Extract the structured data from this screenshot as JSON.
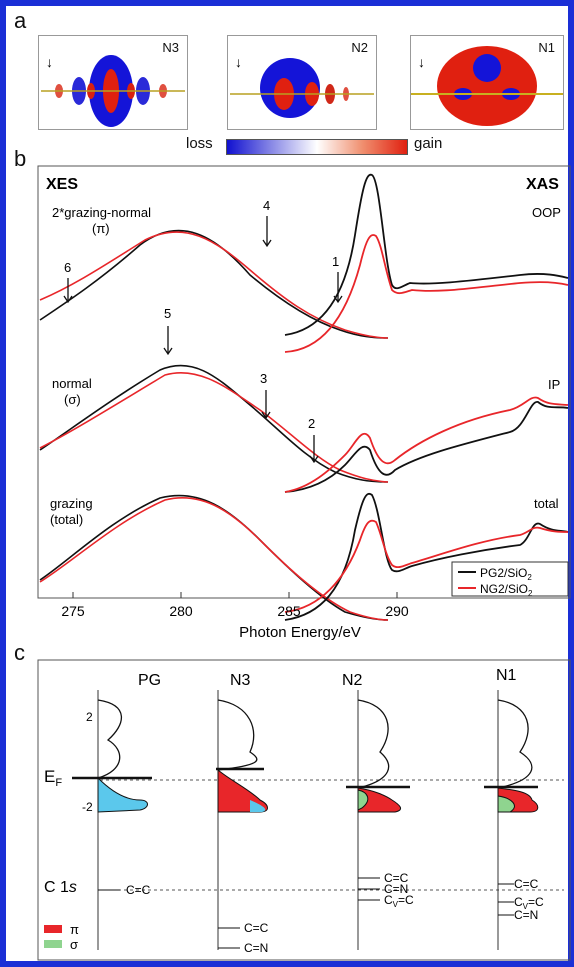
{
  "panel_a": {
    "label": "a",
    "maps": [
      {
        "name": "N3"
      },
      {
        "name": "N2"
      },
      {
        "name": "N1"
      }
    ],
    "colorbar": {
      "left_label": "loss",
      "right_label": "gain"
    }
  },
  "panel_b": {
    "label": "b",
    "left_title": "XES",
    "right_title": "XAS",
    "xlabel": "Photon Energy/eV",
    "ticks": [
      "275",
      "280",
      "285",
      "290"
    ],
    "rows": [
      {
        "label_line1": "2*grazing-normal",
        "label_line2": "(π)",
        "right_label": "OOP"
      },
      {
        "label_line1": "normal",
        "label_line2": "(σ)",
        "right_label": "IP"
      },
      {
        "label_line1": "grazing",
        "label_line2": "(total)",
        "right_label": "total"
      }
    ],
    "peaks": [
      "1",
      "2",
      "3",
      "4",
      "5",
      "6"
    ],
    "legend": [
      {
        "label": "PG2/SiO",
        "sub": "2",
        "color": "#111111"
      },
      {
        "label": "NG2/SiO",
        "sub": "2",
        "color": "#e8262a"
      }
    ]
  },
  "panel_c": {
    "label": "c",
    "columns": [
      "PG",
      "N3",
      "N2",
      "N1"
    ],
    "ytick_2": "2",
    "ytick_m2": "-2",
    "ef_label": "E",
    "ef_sub": "F",
    "c1s_label": "C 1",
    "c1s_italic": "s",
    "levels": {
      "pg": [
        "C=C"
      ],
      "n3": [
        "C=C",
        "C=N"
      ],
      "n2": [
        "C=C",
        "C=N",
        "C",
        "V",
        "=C"
      ],
      "n1": [
        "C=C",
        "C",
        "V",
        "=C",
        "C=N"
      ]
    },
    "legend": [
      {
        "symbol": "π",
        "color": "#e8262a"
      },
      {
        "symbol": "σ",
        "color": "#8fd48f"
      }
    ]
  },
  "chart_data": [
    {
      "type": "line",
      "title": "",
      "xlabel": "Photon Energy/eV",
      "ylabel": "",
      "xlim": [
        272,
        294
      ],
      "series": [
        {
          "name": "PG2/SiO2",
          "note": "black",
          "x": [
            272,
            274,
            276,
            278,
            280,
            282,
            283.5,
            284.5,
            285,
            285.5,
            286,
            287,
            289,
            292,
            294
          ]
        },
        {
          "name": "NG2/SiO2",
          "note": "red",
          "x": [
            272,
            274,
            276,
            278,
            280,
            282,
            283.5,
            284.5,
            285,
            285.5,
            286,
            287,
            289,
            292,
            294
          ]
        }
      ]
    }
  ]
}
